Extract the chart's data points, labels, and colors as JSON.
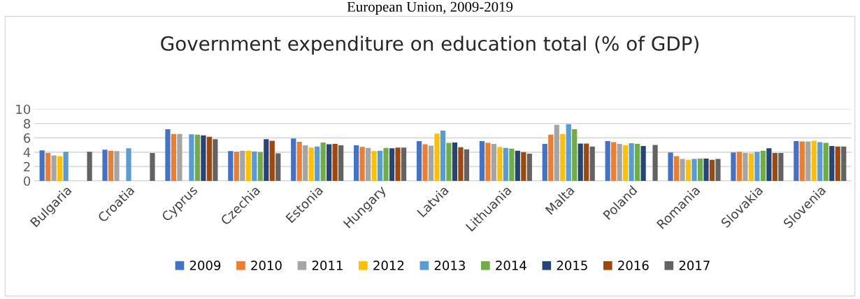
{
  "chart_data": {
    "type": "bar",
    "title": "Government expenditure on education total (% of GDP)",
    "annotations": [
      "European Union, 2009-2019"
    ],
    "categories": [
      "Bulgaria",
      "Croatia",
      "Cyprus",
      "Czechia",
      "Estonia",
      "Hungary",
      "Latvia",
      "Lithuania",
      "Malta",
      "Poland",
      "Romania",
      "Slovakia",
      "Slovenia"
    ],
    "series": [
      {
        "name": "2009",
        "color": "#4472c4",
        "values": [
          4.25,
          4.35,
          7.2,
          4.15,
          5.9,
          4.95,
          5.55,
          5.55,
          5.15,
          5.55,
          3.95,
          3.95,
          5.55
        ]
      },
      {
        "name": "2010",
        "color": "#ed7d31",
        "values": [
          3.9,
          4.2,
          6.55,
          4.05,
          5.45,
          4.75,
          5.1,
          5.3,
          6.45,
          5.4,
          3.45,
          4.05,
          5.5
        ]
      },
      {
        "name": "2011",
        "color": "#a5a5a5",
        "values": [
          3.55,
          4.15,
          6.55,
          4.2,
          4.95,
          4.6,
          4.9,
          5.15,
          7.8,
          5.15,
          3.05,
          3.9,
          5.5
        ]
      },
      {
        "name": "2012",
        "color": "#ffc000",
        "values": [
          3.45,
          null,
          null,
          4.2,
          4.65,
          4.15,
          6.6,
          4.75,
          6.55,
          4.95,
          2.95,
          3.85,
          5.6
        ]
      },
      {
        "name": "2013",
        "color": "#5b9bd5",
        "values": [
          4.05,
          4.55,
          6.5,
          4.1,
          4.8,
          4.2,
          7.0,
          4.6,
          7.9,
          5.25,
          3.05,
          4.05,
          5.4
        ]
      },
      {
        "name": "2014",
        "color": "#70ad47",
        "values": [
          null,
          null,
          6.45,
          4.0,
          5.35,
          4.6,
          5.3,
          4.5,
          7.2,
          5.15,
          3.1,
          4.2,
          5.3
        ]
      },
      {
        "name": "2015",
        "color": "#264478",
        "values": [
          null,
          null,
          6.35,
          5.8,
          5.1,
          4.55,
          5.35,
          4.2,
          5.2,
          4.85,
          3.1,
          4.55,
          4.85
        ]
      },
      {
        "name": "2016",
        "color": "#9e480e",
        "values": [
          null,
          null,
          6.15,
          5.6,
          5.15,
          4.65,
          4.7,
          4.0,
          5.2,
          null,
          2.95,
          3.9,
          4.8
        ]
      },
      {
        "name": "2017",
        "color": "#636363",
        "values": [
          4.05,
          3.9,
          5.8,
          3.85,
          4.95,
          4.65,
          4.4,
          3.8,
          4.8,
          5.0,
          3.05,
          3.9,
          4.8
        ]
      }
    ],
    "ylim": [
      0,
      10
    ],
    "yticks": [
      0,
      2,
      4,
      6,
      8,
      10
    ],
    "grid": "y",
    "legend": "bottom"
  }
}
